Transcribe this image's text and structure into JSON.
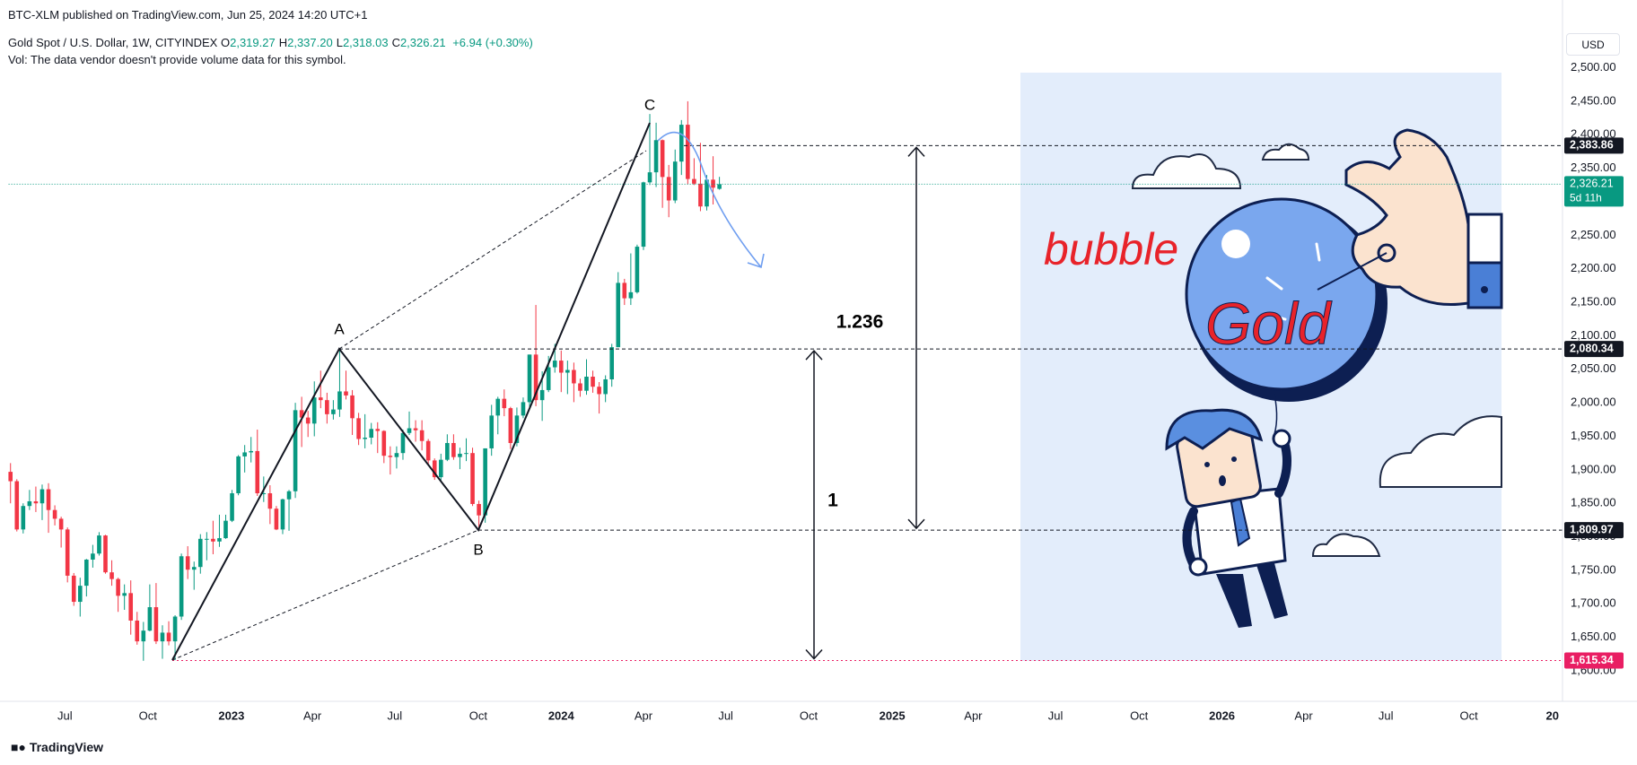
{
  "header": {
    "published": "BTC-XLM published on TradingView.com, Jun 25, 2024 14:20 UTC+1",
    "symbol": "Gold Spot / U.S. Dollar, 1W, CITYINDEX",
    "ohlc": [
      {
        "key": "O",
        "value": "2,319.27"
      },
      {
        "key": "H",
        "value": "2,337.20"
      },
      {
        "key": "L",
        "value": "2,318.03"
      },
      {
        "key": "C",
        "value": "2,326.21"
      }
    ],
    "change": "+6.94 (+0.30%)",
    "volume_note": "Vol: The data vendor doesn't provide volume data for this symbol."
  },
  "currency": "USD",
  "footer": "TradingView",
  "illustration": {
    "words": [
      "bubble",
      "Gold"
    ]
  },
  "chart_data": {
    "type": "candlestick",
    "open": [
      1897,
      1883,
      1811,
      1846,
      1853,
      1850,
      1871,
      1840,
      1827,
      1811,
      1742,
      1703,
      1727,
      1766,
      1775,
      1802,
      1747,
      1737,
      1712,
      1716,
      1675,
      1644,
      1660,
      1695,
      1644,
      1657,
      1644,
      1681,
      1771,
      1751,
      1755,
      1797,
      1797,
      1793,
      1798,
      1824,
      1865,
      1920,
      1926,
      1928,
      1865,
      1865,
      1842,
      1811,
      1856,
      1868,
      1989,
      1978,
      1969,
      2008,
      2004,
      1983,
      1990,
      2017,
      2011,
      1977,
      1946,
      1948,
      1961,
      1958,
      1921,
      1919,
      1925,
      1955,
      1962,
      1959,
      1943,
      1914,
      1889,
      1915,
      1940,
      1919,
      1924,
      1925,
      1849,
      1832,
      1932,
      1981,
      2006,
      1992,
      1940,
      1981,
      2001,
      2072,
      2004,
      2019,
      2053,
      2063,
      2045,
      2049,
      2029,
      2018,
      2039,
      2024,
      2013,
      2035,
      2083,
      2179,
      2156,
      2165,
      2233,
      2329,
      2344,
      2392,
      2337,
      2302,
      2360,
      2415,
      2334,
      2327,
      2293,
      2333,
      2319.27
    ],
    "high": [
      1910,
      1886,
      1850,
      1870,
      1875,
      1878,
      1880,
      1847,
      1830,
      1814,
      1746,
      1739,
      1767,
      1788,
      1807,
      1803,
      1765,
      1739,
      1729,
      1735,
      1688,
      1673,
      1729,
      1731,
      1668,
      1674,
      1683,
      1775,
      1786,
      1763,
      1804,
      1807,
      1824,
      1833,
      1833,
      1870,
      1922,
      1937,
      1949,
      1960,
      1890,
      1877,
      1846,
      1857,
      1870,
      2000,
      2009,
      1988,
      2032,
      2048,
      2015,
      2004,
      2080,
      2048,
      2019,
      1985,
      1983,
      1970,
      1971,
      1959,
      1935,
      1935,
      1960,
      1987,
      1974,
      1974,
      1946,
      1917,
      1924,
      1953,
      1953,
      1933,
      1947,
      1933,
      1854,
      1932,
      1997,
      2009,
      2020,
      1994,
      1993,
      2008,
      2072,
      2146,
      2047,
      2070,
      2088,
      2078,
      2063,
      2060,
      2036,
      2065,
      2048,
      2031,
      2041,
      2088,
      2195,
      2185,
      2223,
      2236,
      2330,
      2431,
      2418,
      2393,
      2355,
      2378,
      2422,
      2450,
      2365,
      2388,
      2340,
      2368,
      2337.2
    ],
    "low": [
      1850,
      1808,
      1805,
      1840,
      1837,
      1825,
      1806,
      1817,
      1784,
      1732,
      1697,
      1681,
      1711,
      1754,
      1772,
      1745,
      1727,
      1688,
      1691,
      1654,
      1639,
      1615,
      1659,
      1640,
      1618,
      1638,
      1616,
      1676,
      1737,
      1721,
      1745,
      1765,
      1774,
      1785,
      1797,
      1822,
      1862,
      1896,
      1911,
      1861,
      1852,
      1819,
      1810,
      1804,
      1809,
      1858,
      1934,
      1949,
      1950,
      1992,
      1969,
      1975,
      1979,
      2005,
      1952,
      1937,
      1932,
      1938,
      1925,
      1910,
      1893,
      1902,
      1915,
      1952,
      1942,
      1929,
      1907,
      1885,
      1884,
      1913,
      1915,
      1901,
      1913,
      1846,
      1810,
      1821,
      1921,
      1953,
      1980,
      1931,
      1935,
      1977,
      1993,
      1995,
      1973,
      2016,
      2045,
      2016,
      2013,
      2001,
      2009,
      2012,
      2015,
      1984,
      2001,
      2024,
      2083,
      2146,
      2146,
      2163,
      2228,
      2325,
      2322,
      2291,
      2277,
      2298,
      2340,
      2326,
      2325,
      2286,
      2287,
      2296,
      2318.03
    ],
    "close": [
      1883,
      1811,
      1846,
      1853,
      1850,
      1871,
      1840,
      1827,
      1811,
      1742,
      1703,
      1727,
      1766,
      1775,
      1802,
      1747,
      1737,
      1712,
      1716,
      1675,
      1644,
      1660,
      1695,
      1644,
      1657,
      1644,
      1681,
      1771,
      1751,
      1755,
      1797,
      1797,
      1793,
      1798,
      1824,
      1865,
      1920,
      1926,
      1928,
      1865,
      1865,
      1842,
      1811,
      1856,
      1868,
      1989,
      1978,
      1969,
      2008,
      2004,
      1983,
      1990,
      2017,
      2011,
      1977,
      1946,
      1948,
      1961,
      1958,
      1921,
      1919,
      1925,
      1955,
      1962,
      1959,
      1943,
      1914,
      1889,
      1915,
      1940,
      1919,
      1924,
      1925,
      1849,
      1832,
      1932,
      1981,
      2006,
      1992,
      1940,
      1981,
      2001,
      2072,
      2004,
      2019,
      2053,
      2063,
      2045,
      2049,
      2029,
      2018,
      2039,
      2024,
      2013,
      2035,
      2083,
      2179,
      2156,
      2165,
      2233,
      2329,
      2344,
      2392,
      2337,
      2302,
      2360,
      2415,
      2334,
      2327,
      2293,
      2333,
      2321,
      2326.21
    ],
    "up_color": "#089981",
    "down_color": "#f23645",
    "xlim": [
      -0.3,
      245.2
    ],
    "xticks": [
      {
        "value": 8.6,
        "label": "Jul"
      },
      {
        "value": 21.7,
        "label": "Oct"
      },
      {
        "value": 34.9,
        "label": "2023"
      },
      {
        "value": 47.7,
        "label": "Apr"
      },
      {
        "value": 60.7,
        "label": "Jul"
      },
      {
        "value": 73.9,
        "label": "Oct"
      },
      {
        "value": 87,
        "label": "2024"
      },
      {
        "value": 100,
        "label": "Apr"
      },
      {
        "value": 113,
        "label": "Jul"
      },
      {
        "value": 126.1,
        "label": "Oct"
      },
      {
        "value": 139.3,
        "label": "2025"
      },
      {
        "value": 152.1,
        "label": "Apr"
      },
      {
        "value": 165.1,
        "label": "Jul"
      },
      {
        "value": 178.3,
        "label": "Oct"
      },
      {
        "value": 191.4,
        "label": "2026"
      },
      {
        "value": 204.3,
        "label": "Apr"
      },
      {
        "value": 217.3,
        "label": "Jul"
      },
      {
        "value": 230.4,
        "label": "Oct"
      },
      {
        "value": 243.6,
        "label": "20"
      }
    ],
    "ylim": [
      1554.5,
      2554.3
    ],
    "yticks": [
      {
        "value": 1600,
        "label": "1,600.00"
      },
      {
        "value": 1650,
        "label": "1,650.00"
      },
      {
        "value": 1700,
        "label": "1,700.00"
      },
      {
        "value": 1750,
        "label": "1,750.00"
      },
      {
        "value": 1800,
        "label": "1,800.00"
      },
      {
        "value": 1850,
        "label": "1,850.00"
      },
      {
        "value": 1900,
        "label": "1,900.00"
      },
      {
        "value": 1950,
        "label": "1,950.00"
      },
      {
        "value": 2000,
        "label": "2,000.00"
      },
      {
        "value": 2050,
        "label": "2,050.00"
      },
      {
        "value": 2100,
        "label": "2,100.00"
      },
      {
        "value": 2150,
        "label": "2,150.00"
      },
      {
        "value": 2200,
        "label": "2,200.00"
      },
      {
        "value": 2250,
        "label": "2,250.00"
      },
      {
        "value": 2300,
        "label": "2,300.00"
      },
      {
        "value": 2350,
        "label": "2,350.00"
      },
      {
        "value": 2400,
        "label": "2,400.00"
      },
      {
        "value": 2450,
        "label": "2,450.00"
      },
      {
        "value": 2500,
        "label": "2,500.00"
      }
    ],
    "grid": true,
    "last_price": {
      "value": 2326.21,
      "label": "2,326.21",
      "countdown": "5d 11h",
      "color": "#089981"
    },
    "levels": [
      {
        "value": 2383.86,
        "label": "2,383.86",
        "color": "#131722"
      },
      {
        "value": 2080.34,
        "label": "2,080.34",
        "color": "#131722"
      },
      {
        "value": 1809.97,
        "label": "1,809.97",
        "color": "#131722"
      },
      {
        "value": 1615.34,
        "label": "1,615.34",
        "color": "#e91e63"
      }
    ],
    "pattern_labels": [
      "A",
      "B",
      "C"
    ],
    "ratios": [
      "1.236",
      "1"
    ]
  }
}
